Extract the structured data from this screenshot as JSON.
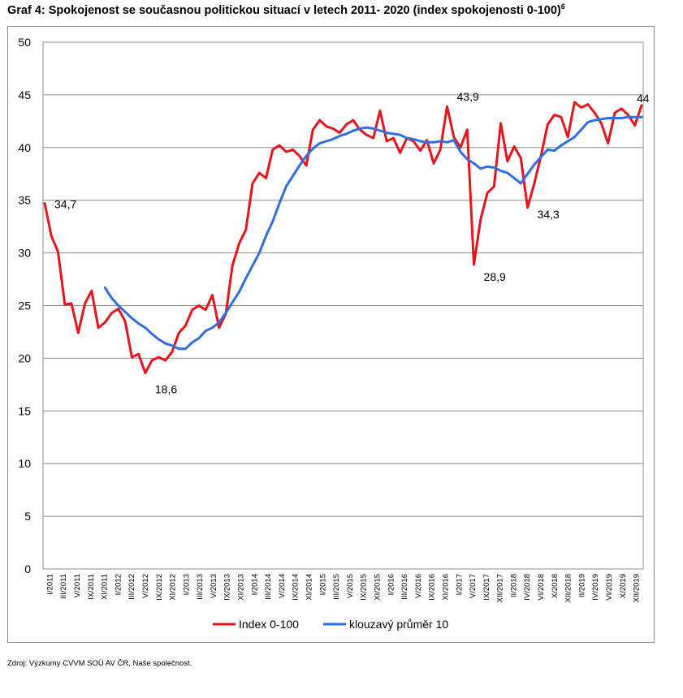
{
  "title": "Graf 4: Spokojenost se současnou politickou situací v letech 2011- 2020 (index spokojenosti 0-100)",
  "title_footnote": "6",
  "source": "Zdroj: Výzkumy CVVM SOÚ AV ČR, Naše společnost.",
  "colors": {
    "index": "#e8141c",
    "moving_avg": "#2f6fe0",
    "grid": "#8c8c8c"
  },
  "chart_data": {
    "type": "line",
    "title": "Spokojenost se současnou politickou situací v letech 2011- 2020 (index spokojenosti 0-100)",
    "xlabel": "",
    "ylabel": "",
    "ylim": [
      0,
      50
    ],
    "yticks": [
      0,
      5,
      10,
      15,
      20,
      25,
      30,
      35,
      40,
      45,
      50
    ],
    "grid": true,
    "legend_position": "bottom",
    "x_tick_labels": [
      "I/2011",
      "III/2011",
      "V/2011",
      "IX/2011",
      "XI/2011",
      "I/2012",
      "III/2012",
      "V/2012",
      "IX/2012",
      "XI/2012",
      "I/2013",
      "III/2013",
      "V/2013",
      "IX/2013",
      "XI/2013",
      "I/2014",
      "III/2014",
      "V/2014",
      "IX/2014",
      "XI/2014",
      "I/2015",
      "III/2015",
      "V/2015",
      "IX/2015",
      "XI/2015",
      "I/2016",
      "III/2016",
      "V/2016",
      "IX/2016",
      "XI/2016",
      "I/2017",
      "V/2017",
      "IX/2017",
      "XII/2017",
      "II/2018",
      "IV/2018",
      "VI/2018",
      "X/2018",
      "XII/2018",
      "II/2019",
      "IV/2019",
      "VI/2019",
      "X/2019",
      "XII/2019"
    ],
    "series": [
      {
        "name": "Index 0-100",
        "values": [
          34.7,
          31.6,
          30.1,
          25.1,
          25.2,
          22.4,
          25.2,
          26.4,
          22.9,
          23.4,
          24.3,
          24.7,
          23.5,
          20.1,
          20.4,
          18.6,
          19.8,
          20.1,
          19.8,
          20.6,
          22.4,
          23.1,
          24.6,
          25.0,
          24.6,
          26.0,
          22.9,
          24.2,
          28.8,
          30.9,
          32.2,
          36.6,
          37.6,
          37.1,
          39.8,
          40.2,
          39.6,
          39.8,
          39.2,
          38.3,
          41.7,
          42.6,
          42.0,
          41.8,
          41.4,
          42.2,
          42.6,
          41.7,
          41.2,
          40.9,
          43.5,
          40.6,
          40.9,
          39.5,
          40.9,
          40.6,
          39.7,
          40.7,
          38.5,
          39.8,
          43.9,
          41.0,
          40.0,
          41.7,
          28.9,
          33.2,
          35.7,
          36.3,
          42.3,
          38.7,
          40.1,
          39.0,
          34.3,
          36.6,
          39.2,
          42.2,
          43.1,
          42.9,
          41.0,
          44.3,
          43.8,
          44.1,
          43.3,
          42.3,
          40.4,
          43.3,
          43.7,
          43.1,
          42.1,
          44.0
        ],
        "labels": [
          {
            "x_index": 0,
            "text": "34,7"
          },
          {
            "x_index": 15,
            "text": "18,6"
          },
          {
            "x_index": 60,
            "text": "43,9"
          },
          {
            "x_index": 64,
            "text": "28,9"
          },
          {
            "x_index": 72,
            "text": "34,3"
          },
          {
            "x_index": 89,
            "text": "44"
          }
        ]
      },
      {
        "name": "klouzavý průměr 10",
        "start_index": 9,
        "values": [
          26.7,
          25.7,
          25.0,
          24.4,
          23.8,
          23.3,
          22.9,
          22.3,
          21.8,
          21.4,
          21.2,
          20.9,
          20.9,
          21.5,
          21.9,
          22.6,
          22.9,
          23.4,
          24.3,
          25.3,
          26.3,
          27.6,
          28.8,
          30.0,
          31.6,
          33.0,
          34.7,
          36.3,
          37.3,
          38.3,
          39.2,
          39.9,
          40.4,
          40.6,
          40.8,
          41.1,
          41.3,
          41.6,
          41.8,
          41.9,
          41.8,
          41.6,
          41.4,
          41.3,
          41.2,
          40.9,
          40.8,
          40.6,
          40.5,
          40.5,
          40.6,
          40.5,
          40.7,
          39.6,
          38.9,
          38.5,
          38.0,
          38.2,
          38.1,
          37.8,
          37.6,
          37.1,
          36.6,
          37.5,
          38.4,
          39.1,
          39.8,
          39.7,
          40.2,
          40.6,
          41.0,
          41.7,
          42.4,
          42.6,
          42.7,
          42.8,
          42.8,
          42.8,
          42.9,
          42.9,
          42.9
        ]
      }
    ]
  }
}
